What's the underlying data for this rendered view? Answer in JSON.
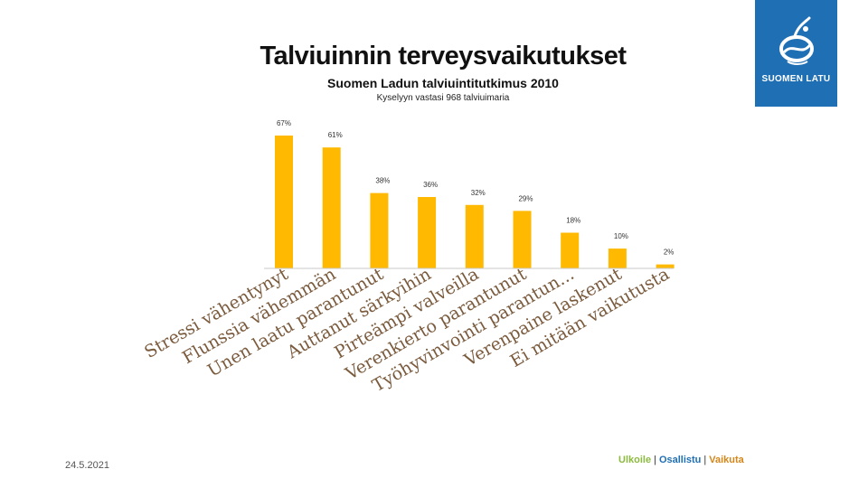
{
  "slide": {
    "title": "Talviuinnin terveysvaikutukset",
    "subtitle": "Suomen Ladun talviuintitutkimus 2010",
    "subsubtitle": "Kyselyyn vastasi 968 talviuimaria",
    "date": "24.5.2021",
    "footer": {
      "part1": "Ulkoile",
      "part2": "Osallistu",
      "part3": "Vaikuta",
      "separator": "|"
    }
  },
  "logo": {
    "text": "SUOMEN LATU",
    "bg_color": "#1f6fb5"
  },
  "chart_data": {
    "type": "bar",
    "bar_color": "#ffb900",
    "ylim": [
      0,
      70
    ],
    "grid": false,
    "categories": [
      "Stressi vähentynyt",
      "Flunssia vähemmän",
      "Unen laatu parantunut",
      "Auttanut särkyihin",
      "Pirteämpi valveilla",
      "Verenkierto parantunut",
      "Työhyvinvointi parantun...",
      "Verenpaine laskenut",
      "Ei mitään vaikutusta"
    ],
    "values": [
      67,
      61,
      38,
      36,
      32,
      29,
      18,
      10,
      2
    ],
    "value_labels": [
      "67%",
      "61%",
      "38%",
      "36%",
      "32%",
      "29%",
      "18%",
      "10%",
      "2%"
    ]
  }
}
